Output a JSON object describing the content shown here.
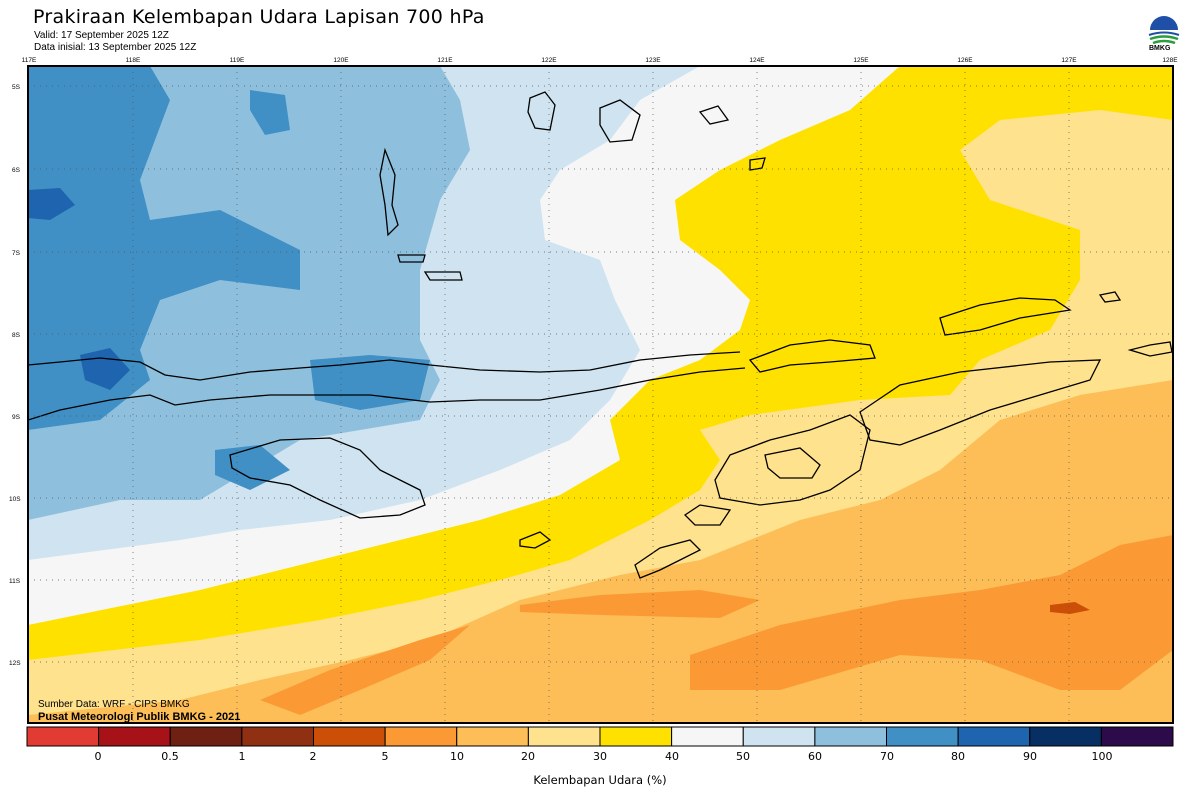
{
  "header": {
    "title": "Prakiraan Kelembapan Udara Lapisan 700 hPa",
    "valid": "Valid: 17 September 2025 12Z",
    "initial": "Data inisial: 13 September 2025 12Z"
  },
  "logo": {
    "text": "BMKG",
    "icon": "bmkg-logo-icon"
  },
  "axes": {
    "longitudes": [
      "117E",
      "118E",
      "119E",
      "120E",
      "121E",
      "122E",
      "123E",
      "124E",
      "125E",
      "126E",
      "127E",
      "128E"
    ],
    "latitudes": [
      "5S",
      "6S",
      "7S",
      "8S",
      "9S",
      "10S",
      "11S",
      "12S"
    ]
  },
  "credits": {
    "source": "Sumber Data: WRF - CIPS BMKG",
    "center": "Pusat Meteorologi Publik BMKG - 2021"
  },
  "colorbar": {
    "title": "Kelembapan Udara (%)",
    "ticks": [
      "0",
      "0.5",
      "1",
      "2",
      "5",
      "10",
      "20",
      "30",
      "40",
      "50",
      "60",
      "70",
      "80",
      "90",
      "100"
    ],
    "colors": [
      "#e23b33",
      "#a61217",
      "#6e2012",
      "#8f3012",
      "#cc4f08",
      "#fb9a35",
      "#fdbe57",
      "#fee28e",
      "#ffe100",
      "#f6f6f6",
      "#cfe3f0",
      "#8ec0de",
      "#408fc5",
      "#1e64ae",
      "#072f63",
      "#2d0a4a"
    ]
  }
}
